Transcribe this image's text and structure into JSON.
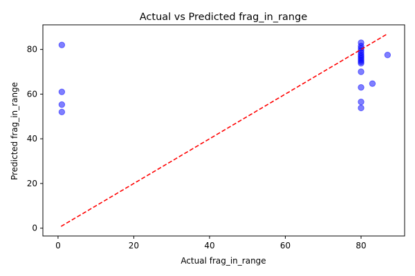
{
  "chart_data": {
    "type": "scatter",
    "title": "Actual vs Predicted frag_in_range",
    "xlabel": "Actual frag_in_range",
    "ylabel": "Predicted frag_in_range",
    "xlim": [
      -4,
      91.5
    ],
    "ylim": [
      -3.5,
      91
    ],
    "xticks": [
      0,
      20,
      40,
      60,
      80
    ],
    "yticks": [
      0,
      20,
      40,
      60,
      80
    ],
    "grid": false,
    "point_color": "#0000ff",
    "point_alpha": 0.5,
    "line_color": "#ff0000",
    "reference_line": {
      "style": "dashed",
      "from": [
        0.8,
        0.8
      ],
      "to": [
        87,
        87
      ]
    },
    "points": [
      {
        "x": 1,
        "y": 82
      },
      {
        "x": 1,
        "y": 61
      },
      {
        "x": 1,
        "y": 55.3
      },
      {
        "x": 1,
        "y": 52
      },
      {
        "x": 80,
        "y": 83
      },
      {
        "x": 80,
        "y": 81.5
      },
      {
        "x": 80,
        "y": 80.5
      },
      {
        "x": 80,
        "y": 79.5
      },
      {
        "x": 80,
        "y": 78.5
      },
      {
        "x": 80,
        "y": 77.5
      },
      {
        "x": 80,
        "y": 76.8
      },
      {
        "x": 80,
        "y": 76
      },
      {
        "x": 80,
        "y": 75.2
      },
      {
        "x": 80,
        "y": 74.5
      },
      {
        "x": 80,
        "y": 73.8
      },
      {
        "x": 80,
        "y": 70
      },
      {
        "x": 80,
        "y": 63
      },
      {
        "x": 80,
        "y": 56.5
      },
      {
        "x": 80,
        "y": 53.8
      },
      {
        "x": 83,
        "y": 64.7
      },
      {
        "x": 87,
        "y": 77.5
      }
    ]
  }
}
